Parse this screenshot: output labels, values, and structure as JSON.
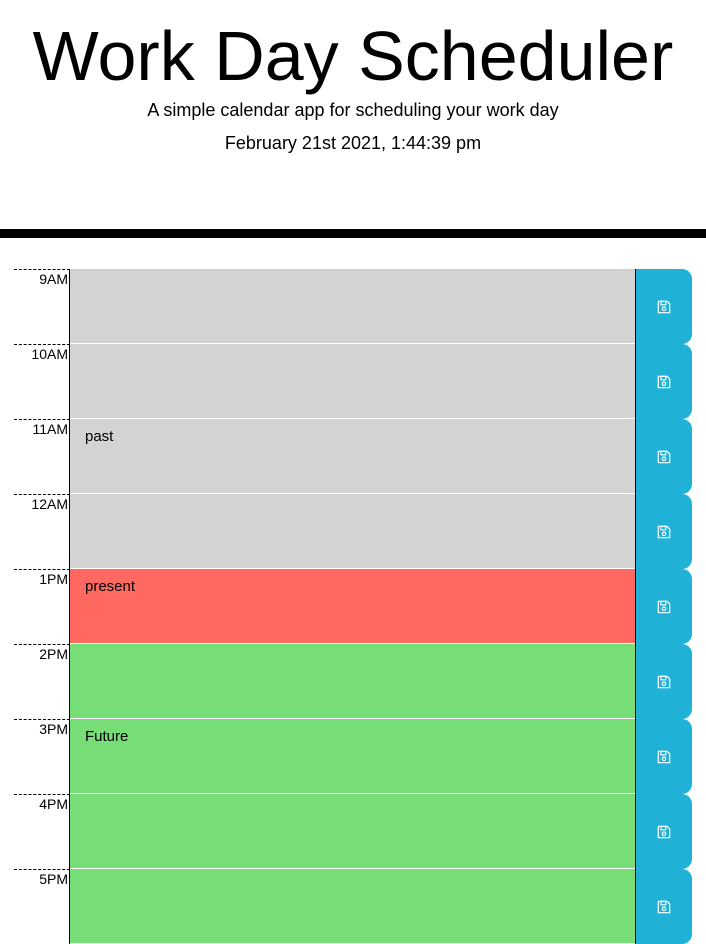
{
  "header": {
    "title": "Work Day Scheduler",
    "subtitle": "A simple calendar app for scheduling your work day",
    "current_datetime": "February 21st 2021, 1:44:39 pm"
  },
  "colors": {
    "past": "#d3d3d3",
    "present": "#ff6961",
    "future": "#77dd77",
    "save_button": "#20b2d6"
  },
  "schedule": [
    {
      "hour": "9AM",
      "text": "",
      "state": "past",
      "save_icon": "floppy-disk-icon"
    },
    {
      "hour": "10AM",
      "text": "",
      "state": "past",
      "save_icon": "floppy-disk-icon"
    },
    {
      "hour": "11AM",
      "text": "past",
      "state": "past",
      "save_icon": "floppy-disk-icon"
    },
    {
      "hour": "12AM",
      "text": "",
      "state": "past",
      "save_icon": "floppy-disk-icon"
    },
    {
      "hour": "1PM",
      "text": "present",
      "state": "present",
      "save_icon": "floppy-disk-icon"
    },
    {
      "hour": "2PM",
      "text": "",
      "state": "future",
      "save_icon": "floppy-disk-icon"
    },
    {
      "hour": "3PM",
      "text": "Future",
      "state": "future",
      "save_icon": "floppy-disk-icon"
    },
    {
      "hour": "4PM",
      "text": "",
      "state": "future",
      "save_icon": "floppy-disk-icon"
    },
    {
      "hour": "5PM",
      "text": "",
      "state": "future",
      "save_icon": "floppy-disk-icon"
    }
  ]
}
